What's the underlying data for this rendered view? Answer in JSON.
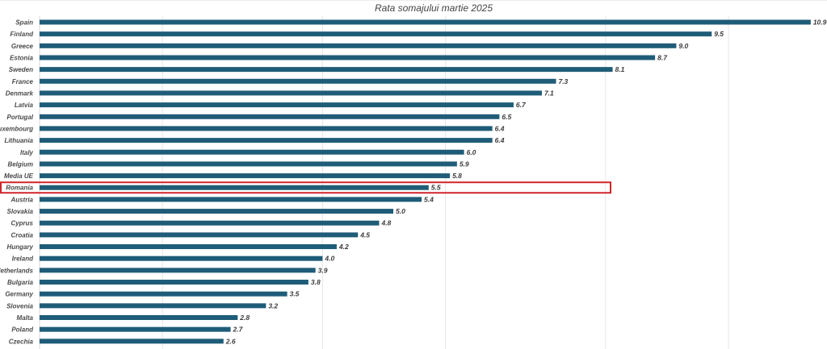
{
  "chart_data": {
    "type": "bar",
    "orientation": "horizontal",
    "title": "Rata somajului martie 2025",
    "xlabel": "",
    "ylabel": "",
    "xlim": [
      0,
      11
    ],
    "grid": true,
    "bar_color": "#1f5c78",
    "highlight_color": "#d0252b",
    "highlight_category": "Romania",
    "categories": [
      "Spain",
      "Finland",
      "Greece",
      "Estonia",
      "Sweden",
      "France",
      "Denmark",
      "Latvia",
      "Portugal",
      "Luxembourg",
      "Lithuania",
      "Italy",
      "Belgium",
      "Media UE",
      "Romania",
      "Austria",
      "Slovakia",
      "Cyprus",
      "Croatia",
      "Hungary",
      "Ireland",
      "Netherlands",
      "Bulgaria",
      "Germany",
      "Slovenia",
      "Malta",
      "Poland",
      "Czechia"
    ],
    "values": [
      10.9,
      9.5,
      9.0,
      8.7,
      8.1,
      7.3,
      7.1,
      6.7,
      6.5,
      6.4,
      6.4,
      6.0,
      5.9,
      5.8,
      5.5,
      5.4,
      5.0,
      4.8,
      4.5,
      4.2,
      4.0,
      3.9,
      3.8,
      3.5,
      3.2,
      2.8,
      2.7,
      2.6
    ],
    "value_labels": [
      "10.9",
      "9.5",
      "9.0",
      "8.7",
      "8.1",
      "7.3",
      "7.1",
      "6.7",
      "6.5",
      "6.4",
      "6.4",
      "6.0",
      "5.9",
      "5.8",
      "5.5",
      "5.4",
      "5.0",
      "4.8",
      "4.5",
      "4.2",
      "4.0",
      "3.9",
      "3.8",
      "3.5",
      "3.2",
      "2.8",
      "2.7",
      "2.6"
    ]
  }
}
